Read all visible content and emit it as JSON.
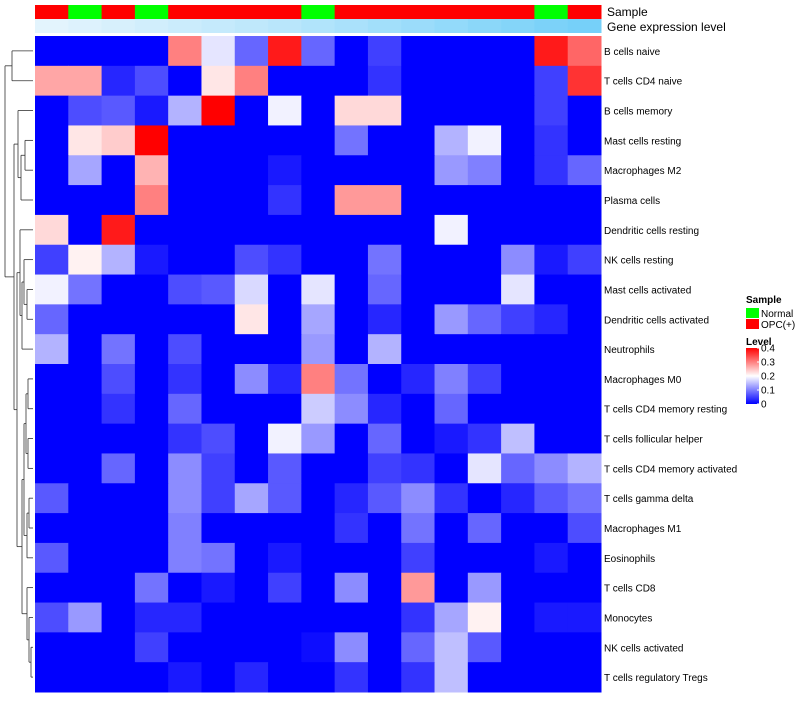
{
  "chart_data": {
    "type": "heatmap",
    "annotation_labels": {
      "sample": "Sample",
      "gene_level": "Gene expression level"
    },
    "sample_groups": [
      "OPC(+)",
      "Normal",
      "OPC(+)",
      "Normal",
      "OPC(+)",
      "OPC(+)",
      "OPC(+)",
      "OPC(+)",
      "Normal",
      "OPC(+)",
      "OPC(+)",
      "OPC(+)",
      "OPC(+)",
      "OPC(+)",
      "OPC(+)",
      "Normal",
      "OPC(+)"
    ],
    "gene_expression_level": [
      0.02,
      0.06,
      0.1,
      0.14,
      0.18,
      0.22,
      0.26,
      0.3,
      0.35,
      0.4,
      0.45,
      0.5,
      0.55,
      0.6,
      0.65,
      0.7,
      0.74
    ],
    "rows": [
      "B cells naive",
      "T cells CD4 naive",
      "B cells memory",
      "Mast cells resting",
      "Macrophages M2",
      "Plasma cells",
      "Dendritic cells resting",
      "NK cells resting",
      "Mast cells activated",
      "Dendritic cells activated",
      "Neutrophils",
      "Macrophages M0",
      "T cells CD4 memory resting",
      "T cells follicular helper",
      "T cells CD4 memory activated",
      "T cells gamma delta",
      "Macrophages M1",
      "Eosinophils",
      "T cells CD8",
      "Monocytes",
      "NK cells activated",
      "T cells regulatory  Tregs"
    ],
    "values": [
      [
        0.0,
        0.0,
        0.0,
        0.0,
        0.3,
        0.18,
        0.08,
        0.38,
        0.08,
        0.0,
        0.05,
        0.0,
        0.0,
        0.0,
        0.0,
        0.38,
        0.32
      ],
      [
        0.27,
        0.27,
        0.03,
        0.06,
        0.0,
        0.22,
        0.3,
        0.0,
        0.0,
        0.0,
        0.04,
        0.0,
        0.0,
        0.0,
        0.0,
        0.05,
        0.36
      ],
      [
        0.0,
        0.06,
        0.07,
        0.02,
        0.14,
        0.4,
        0.0,
        0.19,
        0.0,
        0.23,
        0.23,
        0.0,
        0.0,
        0.0,
        0.0,
        0.05,
        0.0
      ],
      [
        0.0,
        0.22,
        0.24,
        0.4,
        0.0,
        0.0,
        0.0,
        0.0,
        0.0,
        0.09,
        0.0,
        0.0,
        0.14,
        0.19,
        0.0,
        0.04,
        0.0
      ],
      [
        0.0,
        0.13,
        0.0,
        0.26,
        0.0,
        0.0,
        0.0,
        0.02,
        0.0,
        0.0,
        0.0,
        0.0,
        0.12,
        0.1,
        0.0,
        0.04,
        0.08
      ],
      [
        0.0,
        0.0,
        0.0,
        0.3,
        0.0,
        0.0,
        0.0,
        0.04,
        0.0,
        0.28,
        0.28,
        0.0,
        0.0,
        0.0,
        0.0,
        0.0,
        0.0
      ],
      [
        0.23,
        0.0,
        0.38,
        0.0,
        0.0,
        0.0,
        0.0,
        0.0,
        0.0,
        0.0,
        0.0,
        0.0,
        0.19,
        0.0,
        0.0,
        0.0,
        0.0
      ],
      [
        0.05,
        0.21,
        0.14,
        0.02,
        0.0,
        0.0,
        0.06,
        0.04,
        0.0,
        0.0,
        0.09,
        0.0,
        0.0,
        0.0,
        0.11,
        0.02,
        0.05
      ],
      [
        0.19,
        0.09,
        0.0,
        0.0,
        0.06,
        0.07,
        0.17,
        0.0,
        0.18,
        0.0,
        0.08,
        0.0,
        0.0,
        0.0,
        0.18,
        0.0,
        0.0
      ],
      [
        0.08,
        0.0,
        0.0,
        0.0,
        0.0,
        0.0,
        0.22,
        0.0,
        0.13,
        0.0,
        0.03,
        0.0,
        0.12,
        0.08,
        0.05,
        0.03,
        0.0
      ],
      [
        0.14,
        0.0,
        0.09,
        0.0,
        0.06,
        0.0,
        0.0,
        0.0,
        0.12,
        0.0,
        0.14,
        0.0,
        0.0,
        0.0,
        0.0,
        0.0,
        0.0
      ],
      [
        0.0,
        0.0,
        0.06,
        0.0,
        0.04,
        0.0,
        0.11,
        0.03,
        0.3,
        0.09,
        0.0,
        0.03,
        0.1,
        0.05,
        0.0,
        0.0,
        0.0
      ],
      [
        0.0,
        0.0,
        0.04,
        0.0,
        0.08,
        0.0,
        0.0,
        0.0,
        0.16,
        0.11,
        0.03,
        0.0,
        0.08,
        0.0,
        0.0,
        0.0,
        0.0
      ],
      [
        0.0,
        0.0,
        0.0,
        0.0,
        0.04,
        0.06,
        0.0,
        0.19,
        0.12,
        0.0,
        0.08,
        0.0,
        0.02,
        0.04,
        0.15,
        0.0,
        0.0
      ],
      [
        0.0,
        0.0,
        0.08,
        0.0,
        0.11,
        0.05,
        0.0,
        0.07,
        0.0,
        0.0,
        0.05,
        0.04,
        0.0,
        0.18,
        0.08,
        0.11,
        0.14
      ],
      [
        0.07,
        0.0,
        0.0,
        0.0,
        0.11,
        0.05,
        0.13,
        0.07,
        0.0,
        0.03,
        0.07,
        0.11,
        0.04,
        0.0,
        0.03,
        0.07,
        0.09
      ],
      [
        0.0,
        0.0,
        0.0,
        0.0,
        0.1,
        0.0,
        0.0,
        0.0,
        0.0,
        0.04,
        0.0,
        0.09,
        0.0,
        0.08,
        0.0,
        0.0,
        0.06
      ],
      [
        0.07,
        0.0,
        0.0,
        0.0,
        0.1,
        0.09,
        0.0,
        0.02,
        0.0,
        0.0,
        0.0,
        0.05,
        0.0,
        0.0,
        0.0,
        0.02,
        0.0
      ],
      [
        0.0,
        0.0,
        0.0,
        0.09,
        0.0,
        0.02,
        0.0,
        0.05,
        0.0,
        0.11,
        0.0,
        0.28,
        0.0,
        0.12,
        0.0,
        0.0,
        0.0
      ],
      [
        0.06,
        0.12,
        0.0,
        0.03,
        0.03,
        0.0,
        0.0,
        0.0,
        0.0,
        0.0,
        0.0,
        0.04,
        0.13,
        0.21,
        0.0,
        0.02,
        0.02
      ],
      [
        0.0,
        0.0,
        0.0,
        0.05,
        0.0,
        0.0,
        0.0,
        0.0,
        0.01,
        0.11,
        0.0,
        0.08,
        0.15,
        0.07,
        0.0,
        0.0,
        0.0
      ],
      [
        0.0,
        0.0,
        0.0,
        0.0,
        0.02,
        0.0,
        0.03,
        0.0,
        0.0,
        0.04,
        0.0,
        0.04,
        0.15,
        0.0,
        0.0,
        0.0,
        0.0
      ]
    ],
    "legend": {
      "sample_title": "Sample",
      "sample_entries": [
        {
          "label": "Normal",
          "color": "#00ff00"
        },
        {
          "label": "OPC(+)",
          "color": "#ff0000"
        }
      ],
      "level_title": "Level",
      "level_ticks": [
        "0.4",
        "0.3",
        "0.2",
        "0.1",
        "0"
      ],
      "level_tick_values": [
        0.4,
        0.3,
        0.2,
        0.1,
        0.0
      ],
      "range": [
        0,
        0.4
      ],
      "colors": {
        "low": "#0000ff",
        "mid": "#ffffff",
        "high": "#ff0000"
      },
      "gene_level_colors": {
        "low": "#e6f5fd",
        "high": "#4fc3f7"
      }
    },
    "dendrogram": "row-clustered"
  }
}
